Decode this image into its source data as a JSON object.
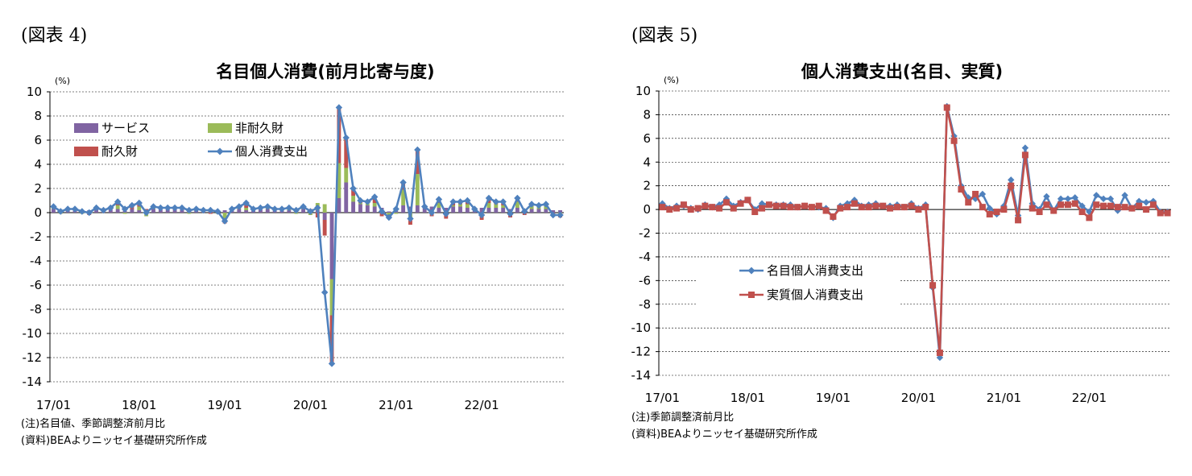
{
  "figure4": {
    "label": "(図表 4)",
    "notes": [
      "(注)名目値、季節調整済前月比",
      "(資料)BEAよりニッセイ基礎研究所作成"
    ],
    "chart_data": {
      "type": "bar",
      "title": "名目個人消費(前月比寄与度)",
      "ylabel": "(%)",
      "ylim": [
        -14,
        10
      ],
      "yticks": [
        10,
        8,
        6,
        4,
        2,
        0,
        -2,
        -4,
        -6,
        -8,
        -10,
        -12,
        -14
      ],
      "xticklabels": [
        "17/01",
        "18/01",
        "19/01",
        "20/01",
        "21/01",
        "22/01"
      ],
      "grid": true,
      "legend_position": "top-left",
      "stacked": true,
      "series": [
        {
          "name": "サービス",
          "type": "bar",
          "color": "#8064A2",
          "values": [
            0.3,
            0.2,
            0.2,
            0.3,
            0.2,
            0.2,
            0.3,
            0.2,
            0.3,
            0.3,
            0.3,
            0.3,
            0.2,
            0.2,
            0.3,
            0.3,
            0.3,
            0.3,
            0.3,
            0.2,
            0.3,
            0.2,
            0.3,
            0.2,
            0.2,
            0.2,
            0.3,
            0.2,
            0.3,
            0.3,
            0.3,
            0.2,
            0.3,
            0.2,
            0.3,
            0.3,
            0.2,
            0.2,
            -0.6,
            -5.5,
            1.2,
            2.5,
            0.9,
            0.7,
            0.6,
            0.5,
            0.4,
            0.1,
            0.2,
            0.6,
            0.5,
            0.6,
            0.5,
            0.5,
            0.4,
            0.4,
            0.5,
            0.5,
            0.4,
            0.3,
            0.4,
            0.4,
            0.4,
            0.4,
            0.3,
            0.4,
            0.3,
            0.3,
            0.3,
            0.3,
            0.2,
            0.2
          ]
        },
        {
          "name": "非耐久財",
          "type": "bar",
          "color": "#9BBB59",
          "values": [
            0.1,
            -0.1,
            0.1,
            0.0,
            -0.1,
            0.0,
            0.1,
            0.0,
            0.0,
            0.3,
            -0.1,
            0.0,
            0.3,
            -0.3,
            0.1,
            0.0,
            0.1,
            0.0,
            0.1,
            -0.1,
            0.0,
            0.0,
            0.0,
            -0.1,
            -0.5,
            0.1,
            0.1,
            0.2,
            0.0,
            0.0,
            0.1,
            0.0,
            0.0,
            0.1,
            -0.1,
            0.2,
            -0.2,
            0.6,
            0.7,
            -3.0,
            2.9,
            1.2,
            0.5,
            0.1,
            0.2,
            0.3,
            0.0,
            -0.3,
            -0.1,
            1.3,
            -0.4,
            2.6,
            0.0,
            -0.1,
            0.4,
            -0.2,
            0.1,
            0.2,
            0.3,
            0.0,
            -0.3,
            0.4,
            0.3,
            0.2,
            -0.2,
            0.5,
            0.0,
            0.3,
            0.2,
            0.3,
            0.0,
            -0.2
          ]
        },
        {
          "name": "耐久財",
          "type": "bar",
          "color": "#C0504D",
          "values": [
            0.1,
            0.0,
            0.0,
            0.0,
            0.0,
            -0.2,
            0.0,
            0.0,
            0.1,
            0.3,
            0.1,
            0.3,
            0.3,
            0.1,
            0.1,
            0.1,
            0.0,
            0.1,
            0.0,
            0.1,
            0.0,
            0.0,
            -0.1,
            0.0,
            -0.4,
            0.0,
            0.1,
            0.4,
            0.0,
            0.1,
            0.1,
            0.1,
            0.0,
            0.1,
            0.0,
            0.0,
            0.1,
            -0.4,
            -1.3,
            -4.0,
            4.6,
            2.5,
            0.6,
            0.2,
            0.1,
            0.5,
            -0.3,
            -0.2,
            0.2,
            0.6,
            -0.6,
            2.0,
            0.0,
            -0.2,
            0.3,
            -0.3,
            0.3,
            0.2,
            0.3,
            0.0,
            -0.3,
            0.4,
            0.2,
            0.3,
            -0.2,
            0.3,
            -0.2,
            0.2,
            0.1,
            0.1,
            -0.2,
            -0.2
          ]
        },
        {
          "name": "個人消費支出",
          "type": "line",
          "color": "#4F81BD",
          "values": [
            0.5,
            0.1,
            0.3,
            0.3,
            0.1,
            0.0,
            0.4,
            0.2,
            0.4,
            0.9,
            0.3,
            0.6,
            0.8,
            0.0,
            0.5,
            0.4,
            0.4,
            0.4,
            0.4,
            0.2,
            0.3,
            0.2,
            0.2,
            0.1,
            -0.7,
            0.3,
            0.5,
            0.8,
            0.3,
            0.4,
            0.5,
            0.3,
            0.3,
            0.4,
            0.2,
            0.5,
            0.1,
            0.4,
            -6.6,
            -12.5,
            8.7,
            6.2,
            2.0,
            1.0,
            0.9,
            1.3,
            0.1,
            -0.4,
            0.3,
            2.5,
            -0.5,
            5.2,
            0.5,
            0.0,
            1.1,
            -0.1,
            0.9,
            0.9,
            1.0,
            0.3,
            -0.2,
            1.2,
            0.9,
            0.9,
            -0.1,
            1.2,
            0.1,
            0.7,
            0.6,
            0.7,
            -0.2,
            -0.2
          ]
        }
      ]
    }
  },
  "figure5": {
    "label": "(図表 5)",
    "notes": [
      "(注)季節調整済前月比",
      "(資料)BEAよりニッセイ基礎研究所作成"
    ],
    "chart_data": {
      "type": "line",
      "title": "個人消費支出(名目、実質)",
      "ylabel": "(%)",
      "ylim": [
        -14,
        10
      ],
      "yticks": [
        10,
        8,
        6,
        4,
        2,
        0,
        -2,
        -4,
        -6,
        -8,
        -10,
        -12,
        -14
      ],
      "xticklabels": [
        "17/01",
        "18/01",
        "19/01",
        "20/01",
        "21/01",
        "22/01"
      ],
      "grid": true,
      "legend_position": "center-left",
      "series": [
        {
          "name": "名目個人消費支出",
          "color": "#4F81BD",
          "marker": "diamond",
          "values": [
            0.5,
            0.1,
            0.3,
            0.3,
            0.1,
            0.0,
            0.4,
            0.2,
            0.4,
            0.9,
            0.3,
            0.6,
            0.8,
            0.0,
            0.5,
            0.4,
            0.4,
            0.4,
            0.4,
            0.2,
            0.3,
            0.2,
            0.2,
            0.1,
            -0.7,
            0.3,
            0.5,
            0.8,
            0.3,
            0.4,
            0.5,
            0.3,
            0.3,
            0.4,
            0.2,
            0.5,
            0.1,
            0.4,
            -6.6,
            -12.5,
            8.7,
            6.2,
            2.0,
            1.0,
            0.9,
            1.3,
            0.1,
            -0.4,
            0.3,
            2.5,
            -0.5,
            5.2,
            0.5,
            0.0,
            1.1,
            -0.1,
            0.9,
            0.9,
            1.0,
            0.3,
            -0.2,
            1.2,
            0.9,
            0.9,
            -0.1,
            1.2,
            0.1,
            0.7,
            0.6,
            0.7,
            -0.2,
            -0.2
          ]
        },
        {
          "name": "実質個人消費支出",
          "color": "#C0504D",
          "marker": "square",
          "values": [
            0.2,
            0.0,
            0.1,
            0.4,
            0.0,
            0.1,
            0.3,
            0.2,
            0.1,
            0.6,
            0.1,
            0.5,
            0.8,
            -0.2,
            0.1,
            0.4,
            0.3,
            0.3,
            0.2,
            0.2,
            0.3,
            0.2,
            0.3,
            -0.1,
            -0.6,
            0.1,
            0.2,
            0.5,
            0.2,
            0.2,
            0.3,
            0.3,
            0.1,
            0.2,
            0.2,
            0.3,
            0.0,
            0.2,
            -6.4,
            -12.1,
            8.6,
            5.8,
            1.7,
            0.6,
            1.3,
            0.2,
            -0.4,
            -0.2,
            0.0,
            2.0,
            -0.9,
            4.6,
            0.1,
            -0.2,
            0.4,
            -0.1,
            0.4,
            0.4,
            0.5,
            -0.2,
            -0.7,
            0.4,
            0.3,
            0.3,
            0.2,
            0.2,
            0.1,
            0.3,
            0.0,
            0.4,
            -0.3,
            -0.3
          ]
        }
      ]
    }
  }
}
